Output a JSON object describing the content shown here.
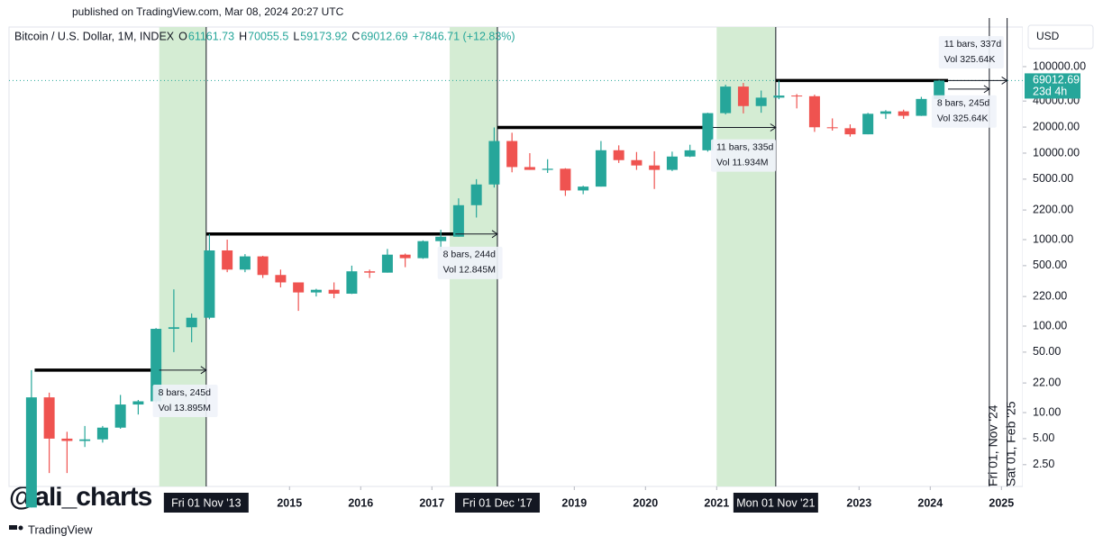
{
  "header": {
    "published": "published on TradingView.com, Mar 08, 2024 20:27 UTC",
    "logo": "TradingView",
    "watermark": "@ali_charts"
  },
  "chart_data": {
    "type": "candlestick",
    "title": "Bitcoin / U.S. Dollar, 1M, INDEX",
    "ohlc": {
      "o_label": "O",
      "open": 61161.73,
      "h_label": "H",
      "high": 70055.5,
      "l_label": "L",
      "low": 59173.92,
      "c_label": "C",
      "close": 69012.69,
      "change": "+7846.71 (+12.83%)"
    },
    "currency": "USD",
    "last_price": {
      "value": 69012.69,
      "label": "69012.69",
      "countdown": "23d 4h"
    },
    "log_scale": true,
    "up_color": "#26a69a",
    "down_color": "#ef5350",
    "x": [
      2011.375,
      2011.625,
      2011.875,
      2012.125,
      2012.375,
      2012.625,
      2012.875,
      2013.125,
      2013.375,
      2013.625,
      2013.875,
      2014.125,
      2014.375,
      2014.625,
      2014.875,
      2015.125,
      2015.375,
      2015.625,
      2015.875,
      2016.125,
      2016.375,
      2016.625,
      2016.875,
      2017.125,
      2017.375,
      2017.625,
      2017.875,
      2018.125,
      2018.375,
      2018.625,
      2018.875,
      2019.125,
      2019.375,
      2019.625,
      2019.875,
      2020.125,
      2020.375,
      2020.625,
      2020.875,
      2021.125,
      2021.375,
      2021.625,
      2021.875,
      2022.125,
      2022.375,
      2022.625,
      2022.875,
      2023.125,
      2023.375,
      2023.625,
      2023.875,
      2024.125
    ],
    "open": [
      0.8,
      15,
      5,
      4.7,
      4.9,
      6.7,
      12.4,
      13.5,
      93,
      97,
      125,
      750,
      450,
      640,
      390,
      320,
      245,
      263,
      237,
      430,
      415,
      670,
      610,
      960,
      1080,
      2500,
      4340,
      13800,
      6900,
      6400,
      6600,
      3700,
      4100,
      10800,
      8300,
      7200,
      6400,
      9130,
      10780,
      29000,
      58800,
      35000,
      43800,
      46300,
      45500,
      19900,
      19400,
      16500,
      28500,
      30400,
      27000,
      42300
    ],
    "high": [
      31,
      17,
      6,
      7,
      7,
      16,
      14,
      95,
      266,
      140,
      1160,
      1000,
      680,
      650,
      450,
      320,
      270,
      320,
      500,
      450,
      780,
      690,
      980,
      1300,
      3000,
      5000,
      19800,
      17200,
      9990,
      8500,
      6700,
      4200,
      13800,
      12300,
      10300,
      10500,
      10400,
      12500,
      29300,
      61800,
      64800,
      52900,
      69000,
      48200,
      47400,
      25200,
      21500,
      29200,
      31400,
      31800,
      44700,
      70055.5
    ],
    "low": [
      0.8,
      2,
      2,
      4,
      4.5,
      6.5,
      9.5,
      13,
      50,
      65,
      120,
      420,
      420,
      360,
      280,
      150,
      220,
      210,
      235,
      360,
      415,
      480,
      600,
      750,
      1080,
      1800,
      4000,
      6000,
      6400,
      5900,
      3200,
      3350,
      4100,
      7700,
      6400,
      3850,
      6200,
      9000,
      10400,
      28000,
      28800,
      29300,
      42000,
      32900,
      17600,
      18200,
      15500,
      16500,
      24800,
      24900,
      26900,
      38500
    ],
    "close": [
      15,
      5,
      4.7,
      4.9,
      6.7,
      12.4,
      13.5,
      93,
      97,
      125,
      750,
      450,
      640,
      390,
      320,
      245,
      263,
      237,
      430,
      415,
      670,
      610,
      960,
      1080,
      2500,
      4340,
      13800,
      6900,
      6400,
      6600,
      3700,
      4100,
      10800,
      8300,
      7200,
      6400,
      9130,
      10780,
      29000,
      58800,
      35000,
      43800,
      46300,
      45500,
      19900,
      19400,
      16500,
      28500,
      30400,
      27000,
      42300,
      69012.69
    ],
    "xlim": [
      2011.06,
      2025.3
    ],
    "xticks": [
      2015,
      2016,
      2017,
      2019,
      2020,
      2021,
      2023,
      2024,
      2025
    ],
    "ylim": [
      1.4,
      287000
    ],
    "yticks": [
      {
        "value": 100000,
        "label": "100000.00"
      },
      {
        "value": 40000,
        "label": "40000.00"
      },
      {
        "value": 20000,
        "label": "20000.00"
      },
      {
        "value": 10000,
        "label": "10000.00"
      },
      {
        "value": 5000,
        "label": "5000.00"
      },
      {
        "value": 2200,
        "label": "2200.00"
      },
      {
        "value": 1000,
        "label": "1000.00"
      },
      {
        "value": 500,
        "label": "500.00"
      },
      {
        "value": 220,
        "label": "220.00"
      },
      {
        "value": 100,
        "label": "100.00"
      },
      {
        "value": 50,
        "label": "50.00"
      },
      {
        "value": 22,
        "label": "22.00"
      },
      {
        "value": 10,
        "label": "10.00"
      },
      {
        "value": 5,
        "label": "5.00"
      },
      {
        "value": 2.5,
        "label": "2.50"
      }
    ],
    "shaded_ranges": [
      {
        "x0": 2013.17,
        "x1": 2013.83,
        "color": "#d4ecd3",
        "end_label": "Fri 01 Nov '13"
      },
      {
        "x0": 2017.25,
        "x1": 2017.92,
        "color": "#d4ecd3",
        "end_label": "Fri 01 Dec '17"
      },
      {
        "x0": 2021.0,
        "x1": 2021.83,
        "color": "#d4ecd3",
        "end_label": "Mon 01 Nov '21"
      }
    ],
    "levels": [
      {
        "value": 31,
        "x0": 2011.42,
        "x1": 2013.17
      },
      {
        "value": 1160,
        "x0": 2013.83,
        "x1": 2017.33
      },
      {
        "value": 19800,
        "x0": 2017.92,
        "x1": 2020.95
      },
      {
        "value": 69000,
        "x0": 2021.83,
        "x1": 2024.25
      }
    ],
    "measures": [
      {
        "x0": 2013.17,
        "x1": 2013.83,
        "value": 31,
        "bars": "8 bars, 245d",
        "vol": "Vol 13.895M",
        "box_x": 2013.08,
        "box_value": 14
      },
      {
        "x0": 2017.33,
        "x1": 2017.92,
        "value": 1160,
        "bars": "8 bars, 244d",
        "vol": "Vol 12.845M",
        "box_x": 2017.08,
        "box_value": 550
      },
      {
        "x0": 2020.95,
        "x1": 2021.83,
        "value": 19800,
        "bars": "11 bars, 335d",
        "vol": "Vol 11.934M",
        "box_x": 2020.92,
        "box_value": 9600
      },
      {
        "x0": 2024.25,
        "x1": 2024.83,
        "value": 55000,
        "bars": "8 bars, 245d",
        "vol": "Vol 325.64K",
        "box_x": 2024.02,
        "box_value": 31000
      },
      {
        "x0": 2024.25,
        "x1": 2025.08,
        "value": 69000,
        "bars": "11 bars, 337d",
        "vol": "Vol 325.64K",
        "box_x": 2024.12,
        "box_value": 150000
      }
    ],
    "date_lines": [
      {
        "x": 2024.83,
        "label": "Fri 01, Nov '24"
      },
      {
        "x": 2025.08,
        "label": "Sat 01, Feb '25"
      }
    ]
  }
}
